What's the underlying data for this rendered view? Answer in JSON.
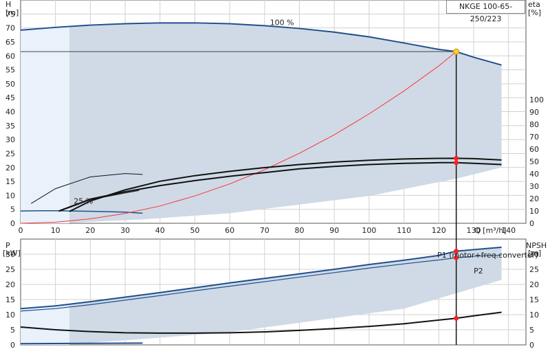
{
  "chart_data": [
    {
      "type": "line",
      "title": "NKGE 100-65-250/223",
      "xlabel": "Q [m³/h]",
      "ylabel": "H\n[m]",
      "y2label": "eta\n[%]",
      "ylabel_name": "H",
      "ylabel_unit": "[m]",
      "y2label_name": "eta",
      "y2label_unit": "[%]",
      "xlabel_text": "Q [m³/h]",
      "xlim": [
        0,
        145
      ],
      "ylim": [
        0,
        80
      ],
      "y2lim": [
        0,
        100
      ],
      "x_ticks": [
        0,
        10,
        20,
        30,
        40,
        50,
        60,
        70,
        80,
        90,
        100,
        110,
        120,
        130,
        140
      ],
      "y_ticks": [
        0,
        5,
        10,
        15,
        20,
        25,
        30,
        35,
        40,
        45,
        50,
        55,
        60,
        65,
        70,
        75
      ],
      "y2_ticks": [
        0,
        10,
        20,
        30,
        40,
        50,
        60,
        70,
        80,
        90,
        100
      ],
      "grid": true,
      "annotations": [
        {
          "text": "100 %",
          "x": 75,
          "y": 71
        },
        {
          "text": "25 %",
          "x": 18,
          "y": 7
        }
      ],
      "duty_point": {
        "Q": 125,
        "H": 61.5
      },
      "series": [
        {
          "role": "head-100",
          "x": [
            0,
            10,
            20,
            30,
            40,
            50,
            60,
            70,
            80,
            90,
            100,
            110,
            120,
            125,
            130,
            138
          ],
          "values": [
            69.2,
            70.2,
            71.0,
            71.5,
            71.8,
            71.8,
            71.5,
            70.8,
            69.8,
            68.5,
            66.8,
            64.6,
            62.3,
            61.5,
            59.5,
            56.7
          ]
        },
        {
          "role": "head-25",
          "x": [
            0,
            5,
            10,
            20,
            30,
            35
          ],
          "values": [
            4.4,
            4.5,
            4.5,
            4.3,
            4.0,
            3.6
          ]
        },
        {
          "role": "system-curve",
          "x": [
            0,
            10,
            20,
            30,
            40,
            50,
            60,
            70,
            80,
            90,
            100,
            110,
            120,
            125
          ],
          "values": [
            0,
            0.4,
            1.6,
            3.5,
            6.2,
            9.8,
            14.1,
            19.2,
            25.1,
            31.7,
            39.2,
            47.4,
            56.4,
            61.5
          ]
        },
        {
          "role": "eta-1",
          "x": [
            14,
            20,
            30,
            40,
            50,
            60,
            70,
            80,
            90,
            100,
            110,
            120,
            125,
            130,
            138
          ],
          "values": [
            9.5,
            18,
            27,
            34,
            38.5,
            42,
            45,
            47.5,
            49.5,
            51,
            52,
            52.5,
            52.6,
            52.3,
            51.2
          ]
        },
        {
          "role": "eta-2",
          "x": [
            11,
            20,
            30,
            40,
            50,
            60,
            70,
            80,
            90,
            100,
            110,
            120,
            125,
            130,
            138
          ],
          "values": [
            10,
            19.5,
            25.5,
            30.5,
            34.5,
            38,
            41,
            44,
            46,
            47.5,
            48.5,
            49,
            49,
            48.5,
            47.5
          ]
        },
        {
          "role": "eta-3",
          "x": [
            3,
            10,
            20,
            30,
            35
          ],
          "values": [
            16,
            28,
            37.5,
            40.2,
            39.5
          ]
        },
        {
          "role": "eta-4",
          "x": [
            11,
            20,
            30,
            34
          ],
          "values": [
            9.5,
            19,
            24.5,
            26.5
          ]
        }
      ],
      "duty_markers": [
        {
          "Q": 125,
          "eta": 52.6
        },
        {
          "Q": 125,
          "eta": 49
        }
      ]
    },
    {
      "type": "line",
      "ylabel": "P\n[kW]",
      "y2label": "NPSH\n[m]",
      "ylabel_name": "P",
      "ylabel_unit": "[kW]",
      "y2label_name": "NPSH",
      "y2label_unit": "[m]",
      "xlim": [
        0,
        145
      ],
      "ylim": [
        0,
        35
      ],
      "y_ticks": [
        0,
        5,
        10,
        15,
        20,
        25,
        30
      ],
      "y2_ticks": [
        0,
        5,
        10,
        15,
        20,
        25,
        30
      ],
      "grid": true,
      "legend": [
        {
          "name": "P1 (motor+freq.converter)",
          "color": "#1f5fa8"
        },
        {
          "name": "P2",
          "color": "#1f5fa8"
        }
      ],
      "series": [
        {
          "role": "P1",
          "x": [
            0,
            10,
            20,
            30,
            40,
            50,
            60,
            70,
            80,
            90,
            100,
            110,
            120,
            125,
            130,
            138
          ],
          "values": [
            12,
            12.9,
            14.3,
            15.8,
            17.3,
            18.9,
            20.5,
            22.0,
            23.5,
            25.0,
            26.6,
            28.0,
            29.6,
            31.0,
            31.5,
            32.3
          ]
        },
        {
          "role": "P2",
          "x": [
            0,
            10,
            20,
            30,
            40,
            50,
            60,
            70,
            80,
            90,
            100,
            110,
            120,
            125,
            130,
            138
          ],
          "values": [
            11.2,
            12,
            13.3,
            14.8,
            16.3,
            17.9,
            19.4,
            20.9,
            22.4,
            23.9,
            25.4,
            26.8,
            28.1,
            28.8,
            29.3,
            29.7
          ]
        },
        {
          "role": "NPSH",
          "x": [
            0,
            10,
            20,
            30,
            40,
            50,
            60,
            70,
            80,
            90,
            100,
            110,
            120,
            125,
            130,
            138
          ],
          "values": [
            5.9,
            5.0,
            4.4,
            4.0,
            3.9,
            3.9,
            4.0,
            4.3,
            4.8,
            5.4,
            6.1,
            7.0,
            8.2,
            8.8,
            9.6,
            10.8
          ]
        },
        {
          "role": "P-25",
          "x": [
            0,
            35
          ],
          "values": [
            0.4,
            0.6
          ]
        }
      ],
      "duty_markers": [
        {
          "Q": 125,
          "P": 31.0
        },
        {
          "Q": 125,
          "P": 28.8
        },
        {
          "Q": 125,
          "NPSH": 8.8
        }
      ]
    }
  ],
  "colors": {
    "curve": "#1f4f8c",
    "fill": "#cfdae6",
    "system": "#ff3333",
    "grid": "#d0d0d0",
    "marker": "#ff2020",
    "duty": "#ffcc33"
  }
}
